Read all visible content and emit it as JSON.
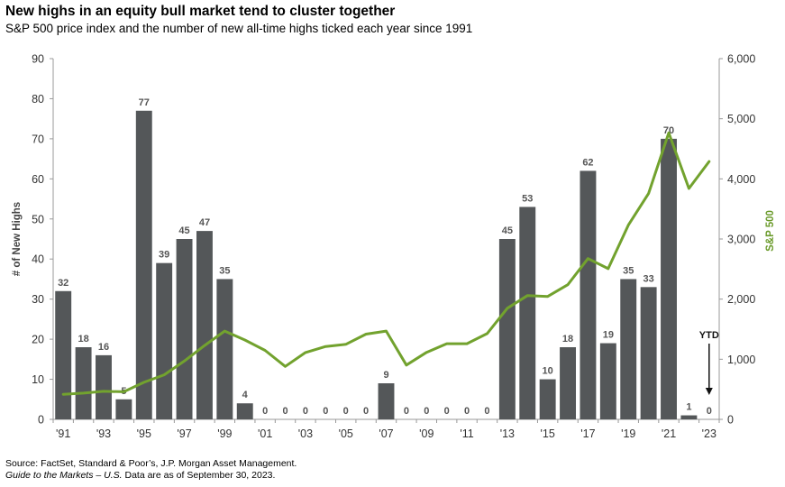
{
  "header": {
    "title": "New highs in an equity bull market tend to cluster together",
    "subtitle": "S&P 500 price index and the number of new all-time highs ticked each year since 1991"
  },
  "footer": {
    "source_line1": "Source: FactSet, Standard & Poor’s, J.P. Morgan Asset Management.",
    "source_line2_italic": "Guide to the Markets – U.S.",
    "source_line2_rest": " Data are as of September 30, 2023."
  },
  "colors": {
    "bars": "#545759",
    "line": "#72a22e",
    "right_axis_label": "#6a9a2a"
  },
  "chart_data": {
    "type": "bar",
    "title": "New highs in an equity bull market tend to cluster together",
    "subtitle": "S&P 500 price index and the number of new all-time highs ticked each year since 1991",
    "categories": [
      "1991",
      "1992",
      "1993",
      "1994",
      "1995",
      "1996",
      "1997",
      "1998",
      "1999",
      "2000",
      "2001",
      "2002",
      "2003",
      "2004",
      "2005",
      "2006",
      "2007",
      "2008",
      "2009",
      "2010",
      "2011",
      "2012",
      "2013",
      "2014",
      "2015",
      "2016",
      "2017",
      "2018",
      "2019",
      "2020",
      "2021",
      "2022",
      "2023"
    ],
    "x_tick_labels": [
      "'91",
      "'93",
      "'95",
      "'97",
      "'99",
      "'01",
      "'03",
      "'05",
      "'07",
      "'09",
      "'11",
      "'13",
      "'15",
      "'17",
      "'19",
      "'21",
      "'23"
    ],
    "x_tick_label_every": 2,
    "series": [
      {
        "name": "# of New Highs",
        "axis": "left",
        "render": "bar",
        "values": [
          32,
          18,
          16,
          5,
          77,
          39,
          45,
          47,
          35,
          4,
          0,
          0,
          0,
          0,
          0,
          0,
          9,
          0,
          0,
          0,
          0,
          0,
          45,
          53,
          10,
          18,
          62,
          19,
          35,
          33,
          70,
          1,
          0
        ]
      },
      {
        "name": "S&P 500",
        "axis": "right",
        "render": "line",
        "values": [
          417,
          436,
          466,
          459,
          616,
          741,
          970,
          1229,
          1469,
          1320,
          1148,
          880,
          1112,
          1212,
          1248,
          1418,
          1468,
          903,
          1115,
          1258,
          1258,
          1426,
          1848,
          2059,
          2044,
          2239,
          2674,
          2507,
          3231,
          3756,
          4766,
          3840,
          4288
        ]
      }
    ],
    "ylabel": "# of New Highs",
    "ylim": [
      0,
      90
    ],
    "yticks": [
      0,
      10,
      20,
      30,
      40,
      50,
      60,
      70,
      80,
      90
    ],
    "y2label": "S&P 500",
    "y2lim": [
      0,
      6000
    ],
    "y2ticks": [
      "0",
      "1,000",
      "2,000",
      "3,000",
      "4,000",
      "5,000",
      "6,000"
    ],
    "annotation": {
      "text": "YTD",
      "category": "2023"
    },
    "grid": false,
    "legend": "none"
  }
}
